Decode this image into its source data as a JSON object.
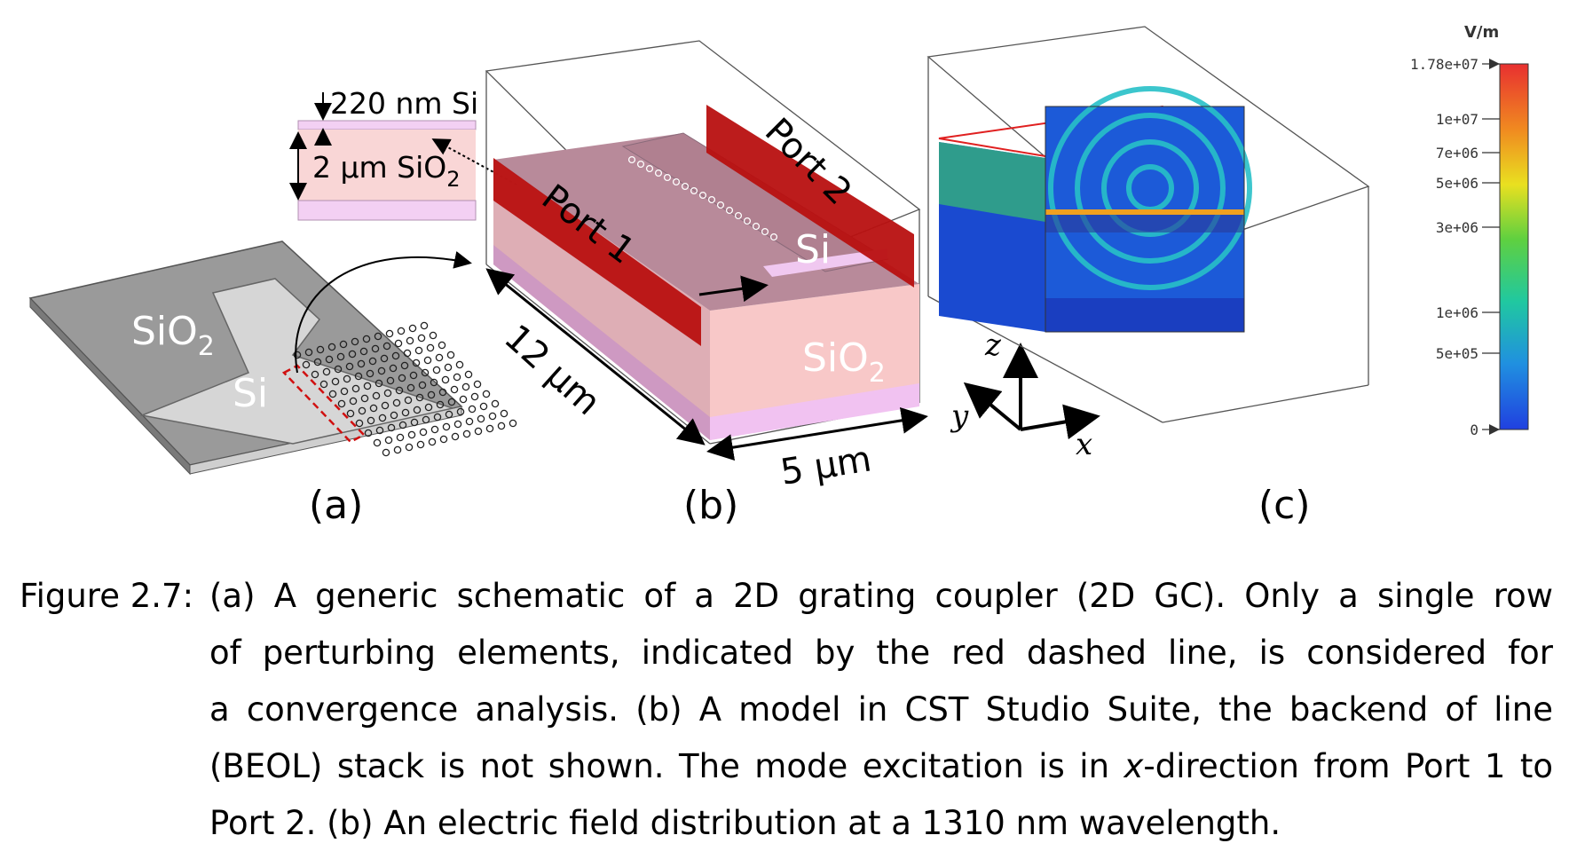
{
  "figure": {
    "panel_a": {
      "label": "(a)",
      "sio2_label": [
        "SiO",
        "2"
      ],
      "si_label": "Si"
    },
    "panel_b": {
      "label": "(b)",
      "layer_si_label": "220 nm Si",
      "layer_sio2_label": [
        "2 µm SiO",
        "2"
      ],
      "port1_label": "Port 1",
      "port2_label": "Port 2",
      "si_label": "Si",
      "sio2_label": [
        "SiO",
        "2"
      ],
      "length_label": "12 µm",
      "width_label": "5 µm"
    },
    "panel_c": {
      "label": "(c)",
      "colorbar": {
        "unit": "V/m",
        "ticks": [
          "1.78e+07",
          "1e+07",
          "7e+06",
          "5e+06",
          "3e+06",
          "1e+06",
          "5e+05",
          "0"
        ],
        "colors": [
          "#e83030",
          "#f08a20",
          "#e9e020",
          "#5fd040",
          "#20c8a0",
          "#2090e0",
          "#2040e0"
        ]
      }
    },
    "axes": {
      "z": "z",
      "y": "y",
      "x": "x"
    },
    "colors": {
      "port_red": "#b81010",
      "substrate_pink": "#f6c4c4",
      "top_purple": "#b88a9a",
      "si_layer": "#f0c8f0"
    }
  },
  "caption": {
    "number": "Figure 2.7:",
    "lines": [
      "(a) A generic schematic of a 2D grating coupler (2D GC). Only a single row",
      "of perturbing elements, indicated by the red dashed line, is considered for",
      "a convergence analysis. (b) A model in CST Studio Suite, the backend of line",
      [
        "(BEOL) stack is not shown. The mode excitation is in ",
        "x",
        "-direction from Port 1 to"
      ],
      "Port 2. (b) An electric field distribution at a 1310 nm wavelength."
    ]
  }
}
